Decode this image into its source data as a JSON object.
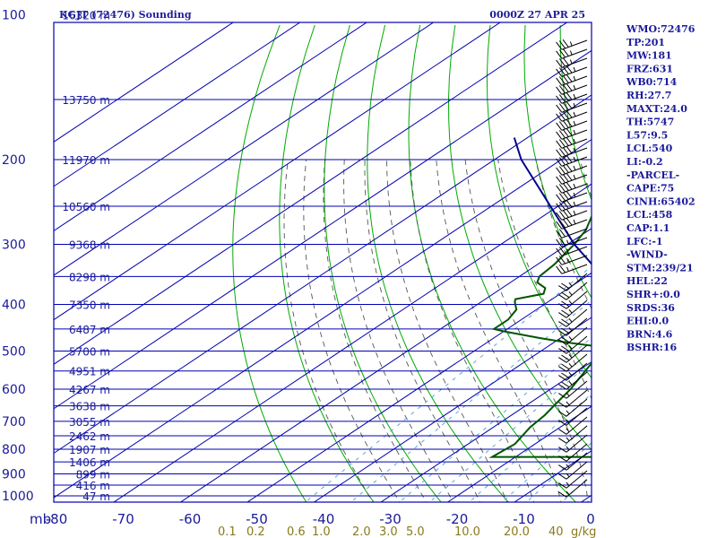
{
  "header": {
    "title": "KGJT (72476) Sounding",
    "datetime": "0000Z 27 APR 25"
  },
  "indices": [
    "WMO:72476",
    "TP:201",
    "MW:181",
    "FRZ:631",
    "WB0:714",
    "RH:27.7",
    "MAXT:24.0",
    "TH:5747",
    "L57:9.5",
    "LCL:540",
    "LI:-0.2",
    "-PARCEL-",
    "CAPE:75",
    "CINH:65402",
    "LCL:458",
    "CAP:1.1",
    "LFC:-1",
    "-WIND-",
    "STM:239/21",
    "HEL:22",
    "SHR+:0.0",
    "SRDS:36",
    "EHI:0.0",
    "BRN:4.6",
    "BSHR:16"
  ],
  "chart_data": {
    "type": "line",
    "title": "KGJT (72476) Sounding",
    "xlabel": "",
    "ylabel": "mb",
    "y_scale": "log",
    "ylim": [
      1000,
      100
    ],
    "xlim": [
      -80,
      0
    ],
    "x_ticks": [
      "-80",
      "-70",
      "-60",
      "-50",
      "-40",
      "-30",
      "-20",
      "-10",
      "0"
    ],
    "y_ticks": [
      "100",
      "200",
      "300",
      "400",
      "500",
      "600",
      "700",
      "800",
      "900",
      "1000"
    ],
    "height_labels": [
      {
        "p": 100,
        "label": "16320 m"
      },
      {
        "p": 150,
        "label": "13750 m"
      },
      {
        "p": 200,
        "label": "11970 m"
      },
      {
        "p": 250,
        "label": "10560 m"
      },
      {
        "p": 300,
        "label": "9368 m"
      },
      {
        "p": 350,
        "label": "8298 m"
      },
      {
        "p": 400,
        "label": "7350 m"
      },
      {
        "p": 450,
        "label": "6487 m"
      },
      {
        "p": 500,
        "label": "5700 m"
      },
      {
        "p": 550,
        "label": "4951 m"
      },
      {
        "p": 600,
        "label": "4267 m"
      },
      {
        "p": 650,
        "label": "3638 m"
      },
      {
        "p": 700,
        "label": "3055 m"
      },
      {
        "p": 750,
        "label": "2462 m"
      },
      {
        "p": 800,
        "label": "1907 m"
      },
      {
        "p": 850,
        "label": "1406 m"
      },
      {
        "p": 900,
        "label": "899 m"
      },
      {
        "p": 950,
        "label": "416 m"
      },
      {
        "p": 1000,
        "label": "47 m"
      }
    ],
    "mixing_ratio_labels": [
      "0.1",
      "0.2",
      "0.6",
      "1.0",
      "2.0",
      "3.0",
      "5.0",
      "10.0",
      "20.0",
      "40",
      "g/kg"
    ],
    "series": [
      {
        "name": "",
        "color": "#b30000",
        "points": [
          [
            830,
            24.0
          ],
          [
            780,
            16.0
          ],
          [
            720,
            6.0
          ],
          [
            650,
            -4.0
          ],
          [
            600,
            -10.5
          ],
          [
            550,
            -16.0
          ],
          [
            500,
            -20.5
          ],
          [
            460,
            -26.0
          ],
          [
            420,
            -31.5
          ],
          [
            380,
            -38.0
          ],
          [
            350,
            -43.0
          ],
          [
            320,
            -48.0
          ],
          [
            290,
            -52.5
          ],
          [
            260,
            -56.5
          ],
          [
            230,
            -60.0
          ],
          [
            210,
            -62.5
          ],
          [
            200,
            -63.5
          ],
          [
            190,
            -62.0
          ],
          [
            180,
            -60.0
          ],
          [
            170,
            -59.0
          ],
          [
            160,
            -60.0
          ],
          [
            150,
            -59.0
          ],
          [
            140,
            -57.0
          ],
          [
            130,
            -57.0
          ],
          [
            120,
            -56.0
          ],
          [
            110,
            -56.0
          ],
          [
            105,
            -56.5
          ],
          [
            100,
            -57.5
          ]
        ]
      },
      {
        "name": "",
        "color": "#005500",
        "points": [
          [
            830,
            -6.0
          ],
          [
            830,
            -23.5
          ],
          [
            780,
            -23.0
          ],
          [
            720,
            -24.5
          ],
          [
            680,
            -25.0
          ],
          [
            640,
            -26.0
          ],
          [
            600,
            -27.0
          ],
          [
            560,
            -28.5
          ],
          [
            510,
            -30.5
          ],
          [
            490,
            -32.0
          ],
          [
            480,
            -38.0
          ],
          [
            470,
            -43.0
          ],
          [
            455,
            -50.0
          ],
          [
            450,
            -52.0
          ],
          [
            430,
            -52.0
          ],
          [
            410,
            -53.0
          ],
          [
            395,
            -55.0
          ],
          [
            390,
            -55.5
          ],
          [
            380,
            -52.5
          ],
          [
            370,
            -53.5
          ],
          [
            360,
            -56.0
          ],
          [
            350,
            -57.0
          ],
          [
            330,
            -57.5
          ],
          [
            300,
            -59.0
          ],
          [
            280,
            -60.5
          ],
          [
            260,
            -63.0
          ],
          [
            240,
            -66.0
          ],
          [
            220,
            -70.0
          ],
          [
            200,
            -74.5
          ],
          [
            180,
            -76.0
          ],
          [
            170,
            -77.0
          ],
          [
            160,
            -78.0
          ],
          [
            150,
            -77.5
          ],
          [
            140,
            -78.5
          ],
          [
            130,
            -79.5
          ],
          [
            120,
            -80.0
          ],
          [
            110,
            -82.0
          ],
          [
            100,
            -84.0
          ]
        ]
      },
      {
        "name": "",
        "color": "#00008b",
        "points": [
          [
            830,
            24.0
          ],
          [
            500,
            -20.5
          ],
          [
            400,
            -37.5
          ],
          [
            300,
            -59.0
          ],
          [
            200,
            -86.0
          ],
          [
            180,
            -92.0
          ]
        ]
      }
    ],
    "colors": {
      "isobars_isotherms": "#0000b0",
      "dry_adiabats": "#00aa00",
      "moist_adiabats": "#555555",
      "mixing_ratio": "#4aa0d0",
      "wind_barbs": "#000000"
    }
  }
}
